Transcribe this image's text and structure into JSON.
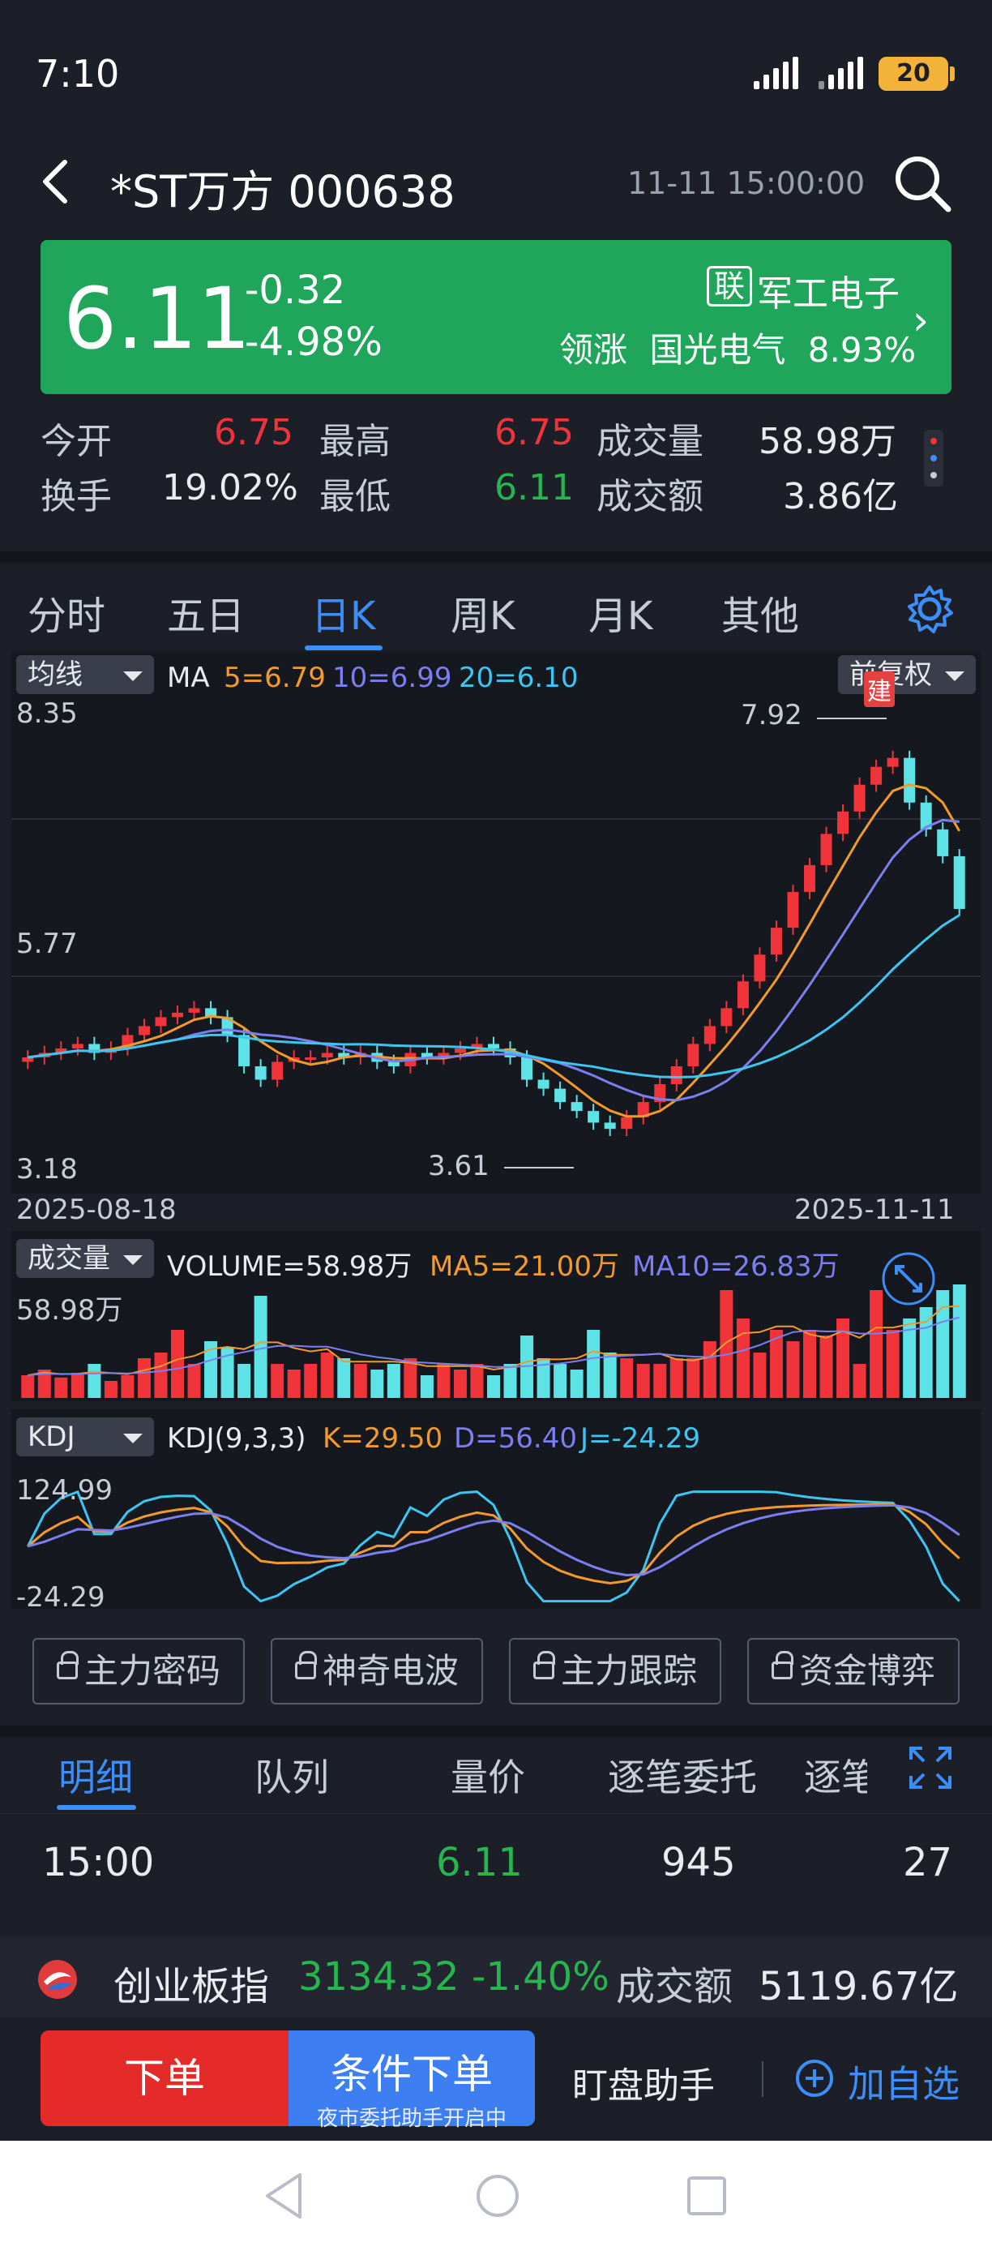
{
  "status": {
    "time": "7:10",
    "battery": "20"
  },
  "header": {
    "title": "*ST万方 000638",
    "datetime": "11-11 15:00:00"
  },
  "price_card": {
    "price": "6.11",
    "change": "-0.32",
    "change_pct": "-4.98%",
    "lian_badge": "联",
    "sector": "军工电子",
    "lead_label": "领涨",
    "lead_stock": "国光电气",
    "lead_pct": "8.93%"
  },
  "quote": {
    "open_label": "今开",
    "open": "6.75",
    "high_label": "最高",
    "high": "6.75",
    "volume_label": "成交量",
    "volume": "58.98万",
    "turnover_label": "换手",
    "turnover": "19.02%",
    "low_label": "最低",
    "low": "6.11",
    "amount_label": "成交额",
    "amount": "3.86亿"
  },
  "tabs": [
    "分时",
    "五日",
    "日K",
    "周K",
    "月K",
    "其他"
  ],
  "active_tab": "日K",
  "kline": {
    "indicator_label": "均线",
    "ma_label": "MA",
    "ma5": "5=6.79",
    "ma10": "10=6.99",
    "ma20": "20=6.10",
    "adjust_label": "前复权",
    "jian_badge": "建",
    "y_top": "8.35",
    "y_mid": "5.77",
    "y_bottom": "3.18",
    "hi_label": "7.92",
    "lo_label": "3.61",
    "date_start": "2025-08-18",
    "date_end": "2025-11-11"
  },
  "volume_panel": {
    "label": "成交量",
    "volume": "VOLUME=58.98万",
    "ma5": "MA5=21.00万",
    "ma10": "MA10=26.83万",
    "y_top": "58.98万"
  },
  "kdj_panel": {
    "label": "KDJ",
    "params": "KDJ(9,3,3)",
    "k": "K=29.50",
    "d": "D=56.40",
    "j": "J=-24.29",
    "y_top": "124.99",
    "y_bottom": "-24.29"
  },
  "lock_buttons": [
    "主力密码",
    "神奇电波",
    "主力跟踪",
    "资金博弈"
  ],
  "detail_tabs": [
    "明细",
    "队列",
    "量价",
    "逐笔委托",
    "逐笔"
  ],
  "detail_row": {
    "time": "15:00",
    "price": "6.11",
    "volume": "945",
    "count": "27"
  },
  "ticker": {
    "name": "创业板指",
    "value": "3134.32",
    "pct": "-1.40%",
    "amount_label": "成交额",
    "amount": "5119.67亿"
  },
  "actions": {
    "order": "下单",
    "conditional": "条件下单",
    "conditional_sub": "夜市委托助手开启中",
    "helper": "盯盘助手",
    "add": "加自选"
  },
  "colors": {
    "up": "#f0343a",
    "down": "#5de2e6",
    "card": "#1fa65a",
    "accent": "#3d8ef8",
    "ma5": "#f39a2e",
    "ma10": "#7b7ff0",
    "ma20": "#3cc6f1"
  }
}
